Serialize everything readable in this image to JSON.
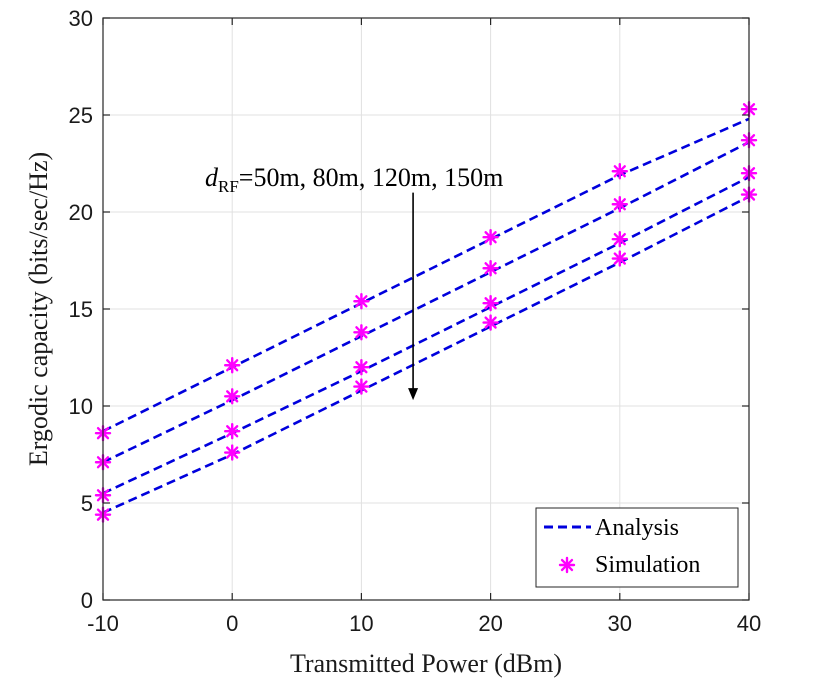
{
  "chart_data": {
    "type": "line",
    "title": "",
    "xlabel": "Transmitted Power (dBm)",
    "ylabel": "Ergodic capacity (bits/sec/Hz)",
    "xlim": [
      -10,
      40
    ],
    "ylim": [
      0,
      30
    ],
    "xticks": [
      -10,
      0,
      10,
      20,
      30,
      40
    ],
    "yticks": [
      0,
      5,
      10,
      15,
      20,
      25,
      30
    ],
    "xtick_labels": [
      "-10",
      "0",
      "10",
      "20",
      "30",
      "40"
    ],
    "ytick_labels": [
      "0",
      "5",
      "10",
      "15",
      "20",
      "25",
      "30"
    ],
    "grid": true,
    "x": [
      -10,
      0,
      10,
      20,
      30,
      40
    ],
    "series": [
      {
        "name": "d_RF=50m",
        "analysis": [
          8.7,
          12.0,
          15.3,
          18.6,
          21.9,
          24.8
        ],
        "simulation": [
          8.6,
          12.1,
          15.4,
          18.7,
          22.1,
          25.3
        ]
      },
      {
        "name": "d_RF=80m",
        "analysis": [
          7.1,
          10.3,
          13.6,
          16.9,
          20.2,
          23.6
        ],
        "simulation": [
          7.1,
          10.5,
          13.8,
          17.1,
          20.4,
          23.7
        ]
      },
      {
        "name": "d_RF=120m",
        "analysis": [
          5.5,
          8.6,
          11.8,
          15.1,
          18.4,
          21.8
        ],
        "simulation": [
          5.4,
          8.7,
          12.0,
          15.3,
          18.6,
          22.0
        ]
      },
      {
        "name": "d_RF=150m",
        "analysis": [
          4.5,
          7.5,
          10.8,
          14.1,
          17.4,
          20.8
        ],
        "simulation": [
          4.4,
          7.6,
          11.0,
          14.3,
          17.6,
          20.9
        ]
      }
    ],
    "annotation": {
      "var": "d",
      "sub": "RF",
      "rest": "=50m, 80m, 120m, 150m",
      "arrow_from": [
        14,
        21
      ],
      "arrow_to": [
        14,
        10.3
      ]
    },
    "legend": {
      "position": "bottom-right",
      "entries": [
        {
          "label": "Analysis",
          "style": "dashed-line"
        },
        {
          "label": "Simulation",
          "style": "asterisk-marker"
        }
      ]
    },
    "colors": {
      "analysis_line": "#0000dd",
      "simulation_marker": "#ff00ff",
      "grid": "#e0e0e0",
      "axis": "#262626"
    }
  }
}
